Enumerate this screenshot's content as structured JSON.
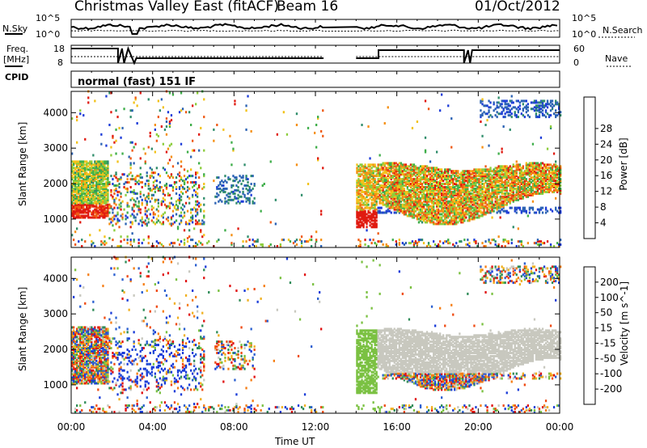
{
  "header": {
    "title": "Christmas Valley East (fitACF)",
    "beam": "Beam 16",
    "date": "01/Oct/2012"
  },
  "noise_panel": {
    "left_label": "N.Sky",
    "right_label": "N.Search",
    "left_ticks": [
      "10^5",
      "10^0"
    ],
    "right_ticks": [
      "10^5",
      "10^0"
    ]
  },
  "freq_panel": {
    "left_label_line1": "Freq.",
    "left_label_line2": "[MHz]",
    "right_label": "Nave",
    "left_ticks": [
      "18",
      "8"
    ],
    "right_ticks": [
      "60",
      "0"
    ]
  },
  "cpid": {
    "label": "CPID",
    "mode_text": "normal (fast) 151 IF"
  },
  "colors": {
    "power_scale": [
      "#1d3cd8",
      "#2c63b4",
      "#2f8d6b",
      "#3fae4a",
      "#8ccd3c",
      "#f2c21a",
      "#f58f14",
      "#ef5a14",
      "#e01a10"
    ],
    "velocity_scale": [
      "#1a3cd8",
      "#2a5fd0",
      "#2e8b57",
      "#7bc142",
      "#c8c8bf",
      "#f0b020",
      "#f57d14",
      "#ef4a12",
      "#e01010"
    ]
  },
  "chart_data": [
    {
      "type": "heatmap",
      "panel": "power",
      "xlabel": "Time UT",
      "ylabel": "Slant Range [km]",
      "x_ticks": [
        "00:00",
        "04:00",
        "08:00",
        "12:00",
        "16:00",
        "20:00",
        "00:00"
      ],
      "y_ticks": [
        1000,
        2000,
        3000,
        4000
      ],
      "ylim": [
        200,
        4600
      ],
      "xlim_hours": [
        0,
        24
      ],
      "colorbar_label": "Power [dB]",
      "colorbar_ticks": [
        4,
        8,
        12,
        16,
        20,
        24,
        28
      ],
      "features": [
        {
          "desc": "strong band",
          "t_start": 0.0,
          "t_end": 1.8,
          "range_lo": 1000,
          "range_hi": 2600
        },
        {
          "desc": "patchy echoes",
          "t_start": 1.8,
          "t_end": 6.5,
          "range_lo": 800,
          "range_hi": 2200
        },
        {
          "desc": "ionospheric band",
          "t_start": 14.0,
          "t_end": 24.0,
          "range_lo": 1200,
          "range_hi": 2500
        },
        {
          "desc": "data gap",
          "t_start": 12.4,
          "t_end": 14.0
        }
      ]
    },
    {
      "type": "heatmap",
      "panel": "velocity",
      "xlabel": "Time UT",
      "ylabel": "Slant Range [km]",
      "x_ticks": [
        "00:00",
        "04:00",
        "08:00",
        "12:00",
        "16:00",
        "20:00",
        "00:00"
      ],
      "y_ticks": [
        1000,
        2000,
        3000,
        4000
      ],
      "ylim": [
        200,
        4600
      ],
      "xlim_hours": [
        0,
        24
      ],
      "colorbar_label": "Velocity [m s^-1]",
      "colorbar_ticks": [
        200,
        100,
        50,
        15,
        -15,
        -50,
        -100,
        -200
      ]
    }
  ]
}
